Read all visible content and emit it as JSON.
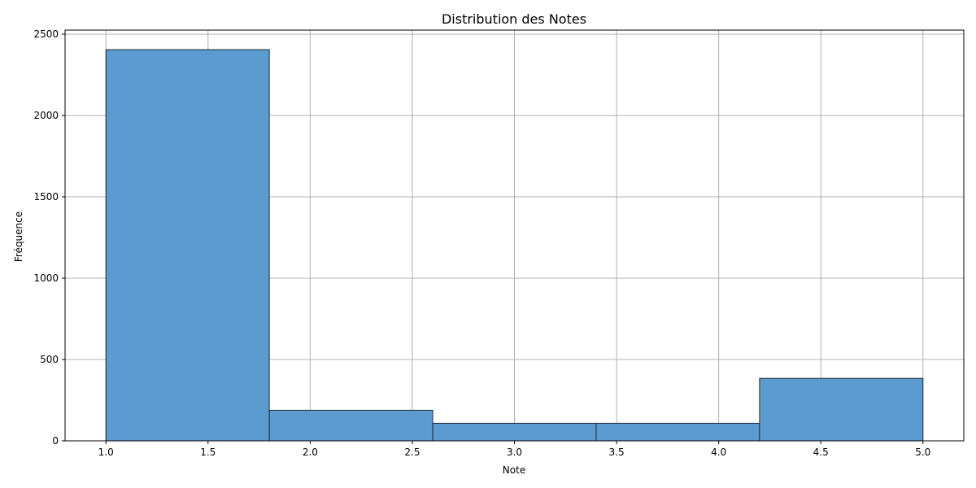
{
  "chart_data": {
    "type": "bar",
    "title": "Distribution des Notes",
    "xlabel": "Note",
    "ylabel": "Fréquence",
    "bins": [
      {
        "x0": 1.0,
        "x1": 1.8,
        "value": 2405
      },
      {
        "x0": 1.8,
        "x1": 2.6,
        "value": 188
      },
      {
        "x0": 2.6,
        "x1": 3.4,
        "value": 108
      },
      {
        "x0": 3.4,
        "x1": 4.2,
        "value": 108
      },
      {
        "x0": 4.2,
        "x1": 5.0,
        "value": 384
      }
    ],
    "xlim": [
      0.8,
      5.2
    ],
    "ylim": [
      0,
      2525
    ],
    "xticks": [
      1.0,
      1.5,
      2.0,
      2.5,
      3.0,
      3.5,
      4.0,
      4.5,
      5.0
    ],
    "xtick_labels": [
      "1.0",
      "1.5",
      "2.0",
      "2.5",
      "3.0",
      "3.5",
      "4.0",
      "4.5",
      "5.0"
    ],
    "yticks": [
      0,
      500,
      1000,
      1500,
      2000,
      2500
    ],
    "ytick_labels": [
      "0",
      "500",
      "1000",
      "1500",
      "2000",
      "2500"
    ],
    "grid": true,
    "colors": {
      "bar_fill": "#5b9bd0",
      "bar_edge": "#1f2a36",
      "grid": "#b0b0b0"
    }
  }
}
